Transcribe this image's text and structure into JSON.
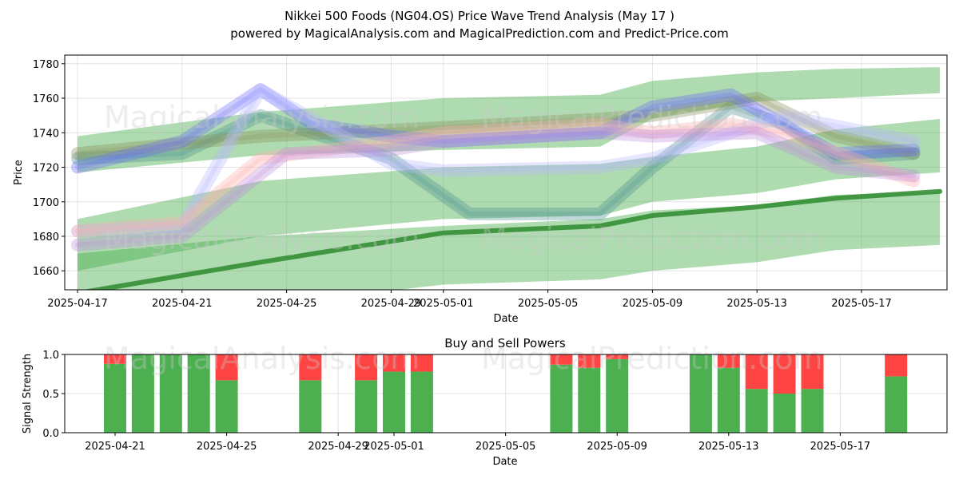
{
  "figure": {
    "title": "Nikkei 500 Foods (NG04.OS) Price Wave Trend Analysis (May 17 )",
    "subtitle": "powered by MagicalAnalysis.com and MagicalPrediction.com and Predict-Price.com",
    "watermarks": [
      "MagicalAnalysis.com",
      "MagicalPrediction.com",
      "MagicalAnalysis.com",
      "MagicalPrediction.com",
      "MagicalAnalysis.com",
      "MagicalPrediction.com"
    ]
  },
  "chart_data": [
    {
      "type": "area",
      "title": "",
      "xlabel": "Date",
      "ylabel": "Price",
      "xlim": [
        "2025-04-17",
        "2025-05-20"
      ],
      "ylim": [
        1649,
        1785
      ],
      "xticks": [
        "2025-04-17",
        "2025-04-21",
        "2025-04-25",
        "2025-04-29",
        "2025-05-01",
        "2025-05-05",
        "2025-05-09",
        "2025-05-13",
        "2025-05-17"
      ],
      "yticks": [
        1660,
        1680,
        1700,
        1720,
        1740,
        1760,
        1780
      ],
      "grid": true,
      "series": [
        {
          "name": "green-upper-band",
          "color": "#4caf50",
          "x": [
            "2025-04-17",
            "2025-04-24",
            "2025-05-01",
            "2025-05-07",
            "2025-05-09",
            "2025-05-13",
            "2025-05-16",
            "2025-05-20"
          ],
          "upper": [
            1738,
            1752,
            1760,
            1762,
            1770,
            1775,
            1777,
            1778
          ],
          "lower": [
            1717,
            1727,
            1730,
            1732,
            1748,
            1758,
            1760,
            1763
          ]
        },
        {
          "name": "green-middle-band",
          "color": "#4caf50",
          "x": [
            "2025-04-17",
            "2025-04-24",
            "2025-05-01",
            "2025-05-07",
            "2025-05-09",
            "2025-05-13",
            "2025-05-16",
            "2025-05-20"
          ],
          "upper": [
            1690,
            1712,
            1720,
            1722,
            1726,
            1732,
            1742,
            1748
          ],
          "lower": [
            1660,
            1680,
            1690,
            1692,
            1700,
            1705,
            1713,
            1717
          ]
        },
        {
          "name": "green-lower-band",
          "color": "#4caf50",
          "x": [
            "2025-04-17",
            "2025-04-24",
            "2025-05-01",
            "2025-05-07",
            "2025-05-09",
            "2025-05-13",
            "2025-05-16",
            "2025-05-20"
          ],
          "upper": [
            1670,
            1680,
            1686,
            1690,
            1695,
            1698,
            1704,
            1706
          ],
          "lower": [
            1625,
            1640,
            1652,
            1655,
            1660,
            1665,
            1672,
            1675
          ]
        },
        {
          "name": "dark-green-price-line",
          "color": "#2e8b2e",
          "x": [
            "2025-04-17",
            "2025-04-24",
            "2025-05-01",
            "2025-05-07",
            "2025-05-09",
            "2025-05-13",
            "2025-05-16",
            "2025-05-20"
          ],
          "values": [
            1647,
            1665,
            1682,
            1686,
            1692,
            1697,
            1702,
            1706
          ]
        },
        {
          "name": "teal-wave",
          "color": "#4a8f8f",
          "x": [
            "2025-04-17",
            "2025-04-21",
            "2025-04-24",
            "2025-04-29",
            "2025-05-02",
            "2025-05-07",
            "2025-05-09",
            "2025-05-12",
            "2025-05-14",
            "2025-05-16",
            "2025-05-19"
          ],
          "values": [
            1725,
            1728,
            1750,
            1725,
            1693,
            1693,
            1720,
            1755,
            1745,
            1725,
            1728
          ]
        },
        {
          "name": "olive-wave",
          "color": "#8a8f5a",
          "x": [
            "2025-04-17",
            "2025-04-24",
            "2025-05-01",
            "2025-05-07",
            "2025-05-09",
            "2025-05-13",
            "2025-05-16",
            "2025-05-19"
          ],
          "values": [
            1728,
            1738,
            1743,
            1748,
            1750,
            1760,
            1738,
            1728
          ]
        },
        {
          "name": "blue-wave",
          "color": "#6a6aff",
          "x": [
            "2025-04-17",
            "2025-04-21",
            "2025-04-24",
            "2025-04-26",
            "2025-04-29",
            "2025-05-01",
            "2025-05-07",
            "2025-05-09",
            "2025-05-12",
            "2025-05-14",
            "2025-05-16",
            "2025-05-19"
          ],
          "values": [
            1720,
            1735,
            1765,
            1745,
            1738,
            1735,
            1740,
            1755,
            1762,
            1745,
            1728,
            1730
          ]
        },
        {
          "name": "lavender-wave",
          "color": "#b8b8ff",
          "x": [
            "2025-04-17",
            "2025-04-21",
            "2025-04-24",
            "2025-04-29",
            "2025-05-01",
            "2025-05-07",
            "2025-05-09",
            "2025-05-12",
            "2025-05-14",
            "2025-05-19"
          ],
          "values": [
            1683,
            1686,
            1765,
            1722,
            1718,
            1720,
            1725,
            1740,
            1750,
            1735
          ]
        },
        {
          "name": "pink-wave",
          "color": "#ffb0b0",
          "x": [
            "2025-04-17",
            "2025-04-21",
            "2025-04-24",
            "2025-04-29",
            "2025-05-01",
            "2025-05-07",
            "2025-05-09",
            "2025-05-12",
            "2025-05-14",
            "2025-05-19"
          ],
          "values": [
            1683,
            1688,
            1725,
            1735,
            1740,
            1745,
            1740,
            1745,
            1740,
            1712
          ]
        },
        {
          "name": "purple-wave",
          "color": "#c090e0",
          "x": [
            "2025-04-17",
            "2025-04-21",
            "2025-04-25",
            "2025-04-29",
            "2025-05-01",
            "2025-05-07",
            "2025-05-09",
            "2025-05-13",
            "2025-05-16",
            "2025-05-19"
          ],
          "values": [
            1675,
            1680,
            1728,
            1730,
            1735,
            1740,
            1738,
            1740,
            1720,
            1715
          ]
        }
      ]
    },
    {
      "type": "bar",
      "title": "Buy and Sell Powers",
      "xlabel": "Date",
      "ylabel": "Signal Strength",
      "xlim": [
        "2025-04-18",
        "2025-05-20"
      ],
      "ylim": [
        0,
        1
      ],
      "xticks": [
        "2025-04-21",
        "2025-04-25",
        "2025-04-29",
        "2025-05-01",
        "2025-05-05",
        "2025-05-09",
        "2025-05-13",
        "2025-05-17"
      ],
      "yticks": [
        "0.0",
        "0.5",
        "1.0"
      ],
      "grid": true,
      "categories": [
        "2025-04-21",
        "2025-04-22",
        "2025-04-23",
        "2025-04-24",
        "2025-04-25",
        "2025-04-28",
        "2025-04-30",
        "2025-05-01",
        "2025-05-02",
        "2025-05-07",
        "2025-05-08",
        "2025-05-09",
        "2025-05-12",
        "2025-05-13",
        "2025-05-14",
        "2025-05-15",
        "2025-05-16",
        "2025-05-19"
      ],
      "series": [
        {
          "name": "Buy",
          "color": "#4caf50",
          "values": [
            0.88,
            1.0,
            1.0,
            1.0,
            0.67,
            0.67,
            0.67,
            0.78,
            0.78,
            0.87,
            0.83,
            0.94,
            1.0,
            0.83,
            0.56,
            0.5,
            0.56,
            0.72
          ]
        },
        {
          "name": "Sell",
          "color": "#ff4444",
          "values": [
            0.12,
            0.0,
            0.0,
            0.0,
            0.33,
            0.33,
            0.33,
            0.22,
            0.22,
            0.13,
            0.17,
            0.06,
            0.0,
            0.17,
            0.44,
            0.5,
            0.44,
            0.28
          ]
        }
      ]
    }
  ]
}
